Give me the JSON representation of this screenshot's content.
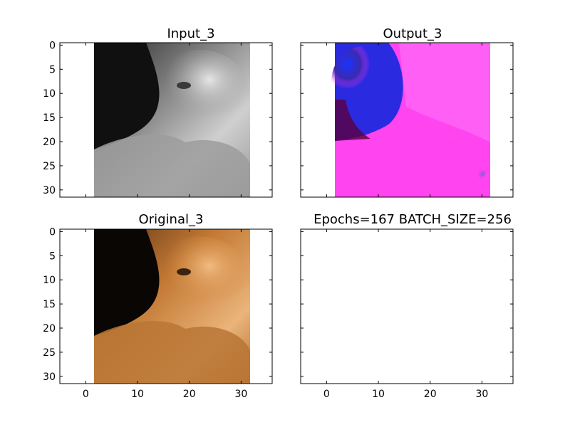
{
  "figure": {
    "background": "#ffffff"
  },
  "chart_data": [
    {
      "type": "image",
      "title": "Input_3",
      "content": "grayscale cat image",
      "xlim": [
        -5,
        36
      ],
      "ylim": [
        31.5,
        -0.5
      ],
      "image_extent": [
        -0.5,
        31.5,
        31.5,
        -0.5
      ],
      "yticks": [
        0,
        5,
        10,
        15,
        20,
        25,
        30
      ],
      "xticks": [
        0,
        10,
        20,
        30
      ],
      "show_x_tick_labels": false,
      "show_y_tick_labels": true,
      "colors": {
        "dark": "#121212",
        "mid": "#8a8a8a",
        "light": "#e2e2e2"
      }
    },
    {
      "type": "image",
      "title": "Output_3",
      "content": "magenta/blue colorized reconstruction",
      "xlim": [
        -5,
        36
      ],
      "ylim": [
        31.5,
        -0.5
      ],
      "image_extent": [
        -0.5,
        31.5,
        31.5,
        -0.5
      ],
      "yticks": [
        0,
        5,
        10,
        15,
        20,
        25,
        30
      ],
      "xticks": [
        0,
        10,
        20,
        30
      ],
      "show_x_tick_labels": false,
      "show_y_tick_labels": false,
      "colors": {
        "magenta": "#ff33f2",
        "light_magenta": "#ff66f5",
        "blue": "#1a33ff",
        "dark": "#3a0030"
      }
    },
    {
      "type": "image",
      "title": "Original_3",
      "content": "color cat image",
      "xlim": [
        -5,
        36
      ],
      "ylim": [
        31.5,
        -0.5
      ],
      "image_extent": [
        -0.5,
        31.5,
        31.5,
        -0.5
      ],
      "yticks": [
        0,
        5,
        10,
        15,
        20,
        25,
        30
      ],
      "xticks": [
        0,
        10,
        20,
        30
      ],
      "show_x_tick_labels": true,
      "show_y_tick_labels": true,
      "colors": {
        "dark": "#0d0805",
        "orange": "#d58a45",
        "light": "#eab47a",
        "brown": "#8a5525"
      }
    },
    {
      "type": "empty",
      "title": "Epochs=167 BATCH_SIZE=256",
      "xlim": [
        -5,
        36
      ],
      "ylim": [
        31.5,
        -0.5
      ],
      "yticks": [
        0,
        5,
        10,
        15,
        20,
        25,
        30
      ],
      "xticks": [
        0,
        10,
        20,
        30
      ],
      "show_x_tick_labels": true,
      "show_y_tick_labels": false
    }
  ]
}
